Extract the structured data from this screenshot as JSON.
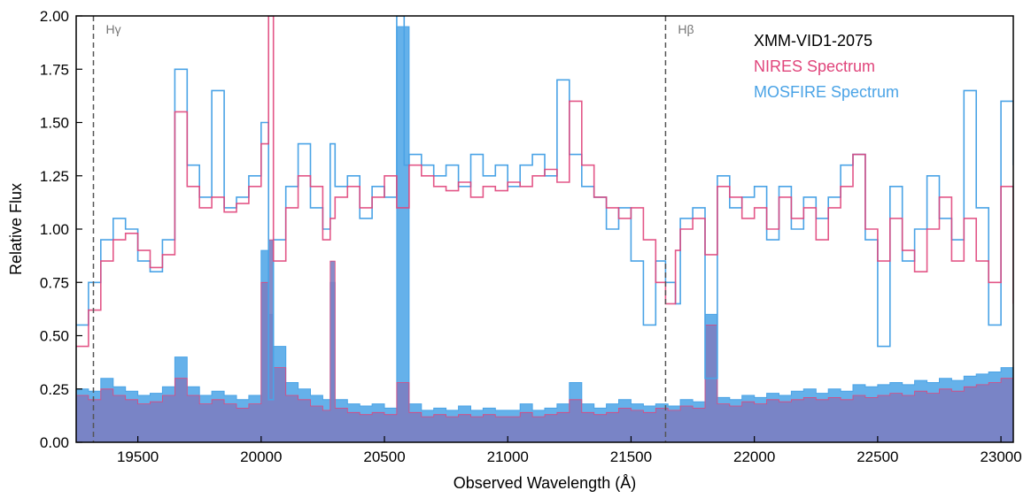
{
  "chart_data": {
    "type": "line",
    "xlabel": "Observed Wavelength (Å)",
    "ylabel": "Relative Flux",
    "xlim": [
      19250,
      23050
    ],
    "ylim": [
      0,
      2.0
    ],
    "xticks": [
      19500,
      20000,
      20500,
      21000,
      21500,
      22000,
      22500,
      23000
    ],
    "yticks": [
      0.0,
      0.25,
      0.5,
      0.75,
      1.0,
      1.25,
      1.5,
      1.75,
      2.0
    ],
    "ytick_labels": [
      "0.00",
      "0.25",
      "0.50",
      "0.75",
      "1.00",
      "1.25",
      "1.50",
      "1.75",
      "2.00"
    ],
    "grid": false,
    "legend": {
      "placement": "top-right",
      "title": "XMM-VID1-2075",
      "entries": [
        "NIRES Spectrum",
        "MOSFIRE Spectrum"
      ]
    },
    "annotations": [
      {
        "label": "Hγ",
        "x": 19320,
        "style": "dashed-vertical"
      },
      {
        "label": "Hβ",
        "x": 21640,
        "style": "dashed-vertical"
      }
    ],
    "colors": {
      "nires": "#e0457b",
      "mosfire": "#4aa3e6",
      "error_fill": "#7b7fc2",
      "annotation_line": "#555555"
    },
    "series": [
      {
        "name": "NIRES Spectrum",
        "kind": "step",
        "x": [
          19250,
          19300,
          19350,
          19400,
          19450,
          19500,
          19550,
          19600,
          19650,
          19700,
          19750,
          19800,
          19850,
          19900,
          19950,
          20000,
          20030,
          20050,
          20100,
          20150,
          20200,
          20250,
          20280,
          20300,
          20350,
          20400,
          20450,
          20500,
          20550,
          20600,
          20650,
          20700,
          20750,
          20800,
          20850,
          20900,
          20950,
          21000,
          21050,
          21100,
          21150,
          21200,
          21250,
          21300,
          21350,
          21400,
          21450,
          21500,
          21550,
          21600,
          21640,
          21680,
          21700,
          21750,
          21800,
          21850,
          21900,
          21950,
          22000,
          22050,
          22100,
          22150,
          22200,
          22250,
          22300,
          22350,
          22400,
          22450,
          22500,
          22550,
          22600,
          22650,
          22700,
          22750,
          22800,
          22850,
          22900,
          22950,
          23000,
          23050
        ],
        "y": [
          0.45,
          0.62,
          0.85,
          0.95,
          0.98,
          0.9,
          0.82,
          0.88,
          1.55,
          1.2,
          1.1,
          1.15,
          1.08,
          1.12,
          1.2,
          1.4,
          2.0,
          0.85,
          1.1,
          1.25,
          1.2,
          0.95,
          1.05,
          1.15,
          1.2,
          1.1,
          1.15,
          1.25,
          1.1,
          1.3,
          1.25,
          1.2,
          1.18,
          1.22,
          1.15,
          1.2,
          1.18,
          1.22,
          1.2,
          1.25,
          1.28,
          1.22,
          1.6,
          1.3,
          1.15,
          1.1,
          1.05,
          1.1,
          0.95,
          0.75,
          0.65,
          0.9,
          1.0,
          1.05,
          0.88,
          1.2,
          1.15,
          1.05,
          1.1,
          1.0,
          1.15,
          1.05,
          1.1,
          0.95,
          1.1,
          1.2,
          1.35,
          1.0,
          0.85,
          1.05,
          0.9,
          0.8,
          1.0,
          1.15,
          0.85,
          1.05,
          0.85,
          0.75,
          1.2,
          0.65
        ]
      },
      {
        "name": "MOSFIRE Spectrum",
        "kind": "step",
        "x": [
          19250,
          19300,
          19350,
          19400,
          19450,
          19500,
          19550,
          19600,
          19650,
          19700,
          19750,
          19800,
          19850,
          19900,
          19950,
          20000,
          20030,
          20050,
          20100,
          20150,
          20200,
          20250,
          20280,
          20300,
          20350,
          20400,
          20450,
          20500,
          20550,
          20580,
          20600,
          20650,
          20700,
          20750,
          20800,
          20850,
          20900,
          20950,
          21000,
          21050,
          21100,
          21150,
          21200,
          21250,
          21300,
          21350,
          21400,
          21450,
          21500,
          21550,
          21600,
          21640,
          21680,
          21700,
          21750,
          21800,
          21850,
          21900,
          21950,
          22000,
          22050,
          22100,
          22150,
          22200,
          22250,
          22300,
          22350,
          22400,
          22450,
          22500,
          22550,
          22600,
          22650,
          22700,
          22750,
          22800,
          22850,
          22900,
          22950,
          23000,
          23050
        ],
        "y": [
          0.55,
          0.75,
          0.95,
          1.05,
          1.0,
          0.85,
          0.8,
          0.95,
          1.75,
          1.3,
          1.15,
          1.65,
          1.1,
          1.15,
          1.25,
          1.5,
          0.2,
          0.95,
          1.2,
          1.4,
          1.1,
          1.0,
          1.4,
          1.2,
          1.25,
          1.05,
          1.2,
          1.15,
          2.0,
          1.3,
          1.35,
          1.3,
          1.25,
          1.3,
          1.2,
          1.35,
          1.25,
          1.3,
          1.2,
          1.3,
          1.35,
          1.25,
          1.7,
          1.35,
          1.2,
          1.15,
          1.0,
          1.1,
          0.85,
          0.55,
          0.85,
          0.75,
          0.65,
          1.05,
          1.1,
          0.3,
          1.25,
          1.1,
          1.15,
          1.2,
          0.95,
          1.2,
          1.0,
          1.15,
          1.05,
          1.15,
          1.3,
          1.35,
          0.95,
          0.45,
          1.2,
          0.85,
          1.0,
          1.25,
          1.05,
          0.95,
          1.65,
          1.1,
          0.55,
          1.6,
          1.3
        ]
      },
      {
        "name": "NIRES error",
        "kind": "filled-step",
        "x": [
          19250,
          19300,
          19350,
          19400,
          19450,
          19500,
          19550,
          19600,
          19650,
          19700,
          19750,
          19800,
          19850,
          19900,
          19950,
          20000,
          20030,
          20050,
          20100,
          20150,
          20200,
          20250,
          20280,
          20300,
          20350,
          20400,
          20450,
          20500,
          20550,
          20600,
          20650,
          20700,
          20750,
          20800,
          20850,
          20900,
          20950,
          21000,
          21050,
          21100,
          21150,
          21200,
          21250,
          21300,
          21350,
          21400,
          21450,
          21500,
          21550,
          21600,
          21650,
          21700,
          21750,
          21800,
          21850,
          21900,
          21950,
          22000,
          22050,
          22100,
          22150,
          22200,
          22250,
          22300,
          22350,
          22400,
          22450,
          22500,
          22550,
          22600,
          22650,
          22700,
          22750,
          22800,
          22850,
          22900,
          22950,
          23000,
          23050
        ],
        "y": [
          0.22,
          0.2,
          0.25,
          0.22,
          0.2,
          0.18,
          0.19,
          0.22,
          0.3,
          0.22,
          0.18,
          0.2,
          0.18,
          0.16,
          0.18,
          0.75,
          0.95,
          0.35,
          0.22,
          0.2,
          0.17,
          0.15,
          0.85,
          0.16,
          0.14,
          0.13,
          0.14,
          0.13,
          0.28,
          0.14,
          0.12,
          0.13,
          0.12,
          0.13,
          0.12,
          0.13,
          0.12,
          0.12,
          0.14,
          0.12,
          0.13,
          0.14,
          0.2,
          0.14,
          0.13,
          0.14,
          0.16,
          0.15,
          0.14,
          0.16,
          0.15,
          0.17,
          0.16,
          0.55,
          0.18,
          0.17,
          0.19,
          0.18,
          0.2,
          0.19,
          0.2,
          0.21,
          0.2,
          0.21,
          0.2,
          0.22,
          0.21,
          0.22,
          0.23,
          0.22,
          0.24,
          0.23,
          0.25,
          0.24,
          0.26,
          0.27,
          0.28,
          0.3,
          0.3
        ]
      },
      {
        "name": "MOSFIRE error",
        "kind": "filled-step",
        "x": [
          19250,
          19300,
          19350,
          19400,
          19450,
          19500,
          19550,
          19600,
          19650,
          19700,
          19750,
          19800,
          19850,
          19900,
          19950,
          20000,
          20030,
          20050,
          20100,
          20150,
          20200,
          20250,
          20280,
          20300,
          20350,
          20400,
          20450,
          20500,
          20550,
          20600,
          20650,
          20700,
          20750,
          20800,
          20850,
          20900,
          20950,
          21000,
          21050,
          21100,
          21150,
          21200,
          21250,
          21300,
          21350,
          21400,
          21450,
          21500,
          21550,
          21600,
          21650,
          21700,
          21750,
          21800,
          21850,
          21900,
          21950,
          22000,
          22050,
          22100,
          22150,
          22200,
          22250,
          22300,
          22350,
          22400,
          22450,
          22500,
          22550,
          22600,
          22650,
          22700,
          22750,
          22800,
          22850,
          22900,
          22950,
          23000,
          23050
        ],
        "y": [
          0.25,
          0.24,
          0.3,
          0.26,
          0.24,
          0.22,
          0.23,
          0.26,
          0.4,
          0.26,
          0.22,
          0.24,
          0.22,
          0.2,
          0.22,
          0.9,
          0.6,
          0.45,
          0.28,
          0.25,
          0.22,
          0.2,
          0.75,
          0.2,
          0.18,
          0.17,
          0.18,
          0.16,
          1.95,
          0.18,
          0.15,
          0.16,
          0.15,
          0.17,
          0.15,
          0.16,
          0.15,
          0.15,
          0.18,
          0.15,
          0.16,
          0.18,
          0.28,
          0.18,
          0.16,
          0.18,
          0.2,
          0.18,
          0.17,
          0.18,
          0.17,
          0.2,
          0.19,
          0.6,
          0.21,
          0.2,
          0.22,
          0.21,
          0.23,
          0.22,
          0.24,
          0.25,
          0.23,
          0.25,
          0.24,
          0.27,
          0.26,
          0.27,
          0.28,
          0.27,
          0.29,
          0.28,
          0.3,
          0.29,
          0.31,
          0.32,
          0.33,
          0.35,
          0.35
        ]
      }
    ]
  }
}
